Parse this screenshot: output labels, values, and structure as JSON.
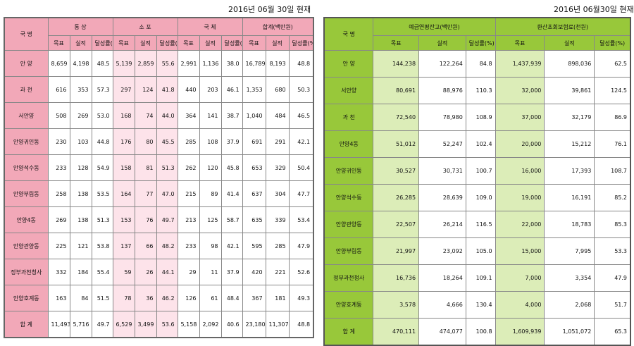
{
  "left": {
    "date": "2016년 06월 30일 현재",
    "col_name": "국  명",
    "groups": [
      "통  상",
      "소  포",
      "국  체",
      "합계(백만원)"
    ],
    "sub": [
      "목표",
      "실적",
      "달성률(%)"
    ],
    "rows": [
      {
        "name": "안  양",
        "v": [
          "8,659",
          "4,198",
          "48.5",
          "5,139",
          "2,859",
          "55.6",
          "2,991",
          "1,136",
          "38.0",
          "16,789",
          "8,193",
          "48.8"
        ]
      },
      {
        "name": "과  천",
        "v": [
          "616",
          "353",
          "57.3",
          "297",
          "124",
          "41.8",
          "440",
          "203",
          "46.1",
          "1,353",
          "680",
          "50.3"
        ]
      },
      {
        "name": "서안양",
        "v": [
          "508",
          "269",
          "53.0",
          "168",
          "74",
          "44.0",
          "364",
          "141",
          "38.7",
          "1,040",
          "484",
          "46.5"
        ]
      },
      {
        "name": "안양귀인동",
        "v": [
          "230",
          "103",
          "44.8",
          "176",
          "80",
          "45.5",
          "285",
          "108",
          "37.9",
          "691",
          "291",
          "42.1"
        ]
      },
      {
        "name": "안양석수동",
        "v": [
          "233",
          "128",
          "54.9",
          "158",
          "81",
          "51.3",
          "262",
          "120",
          "45.8",
          "653",
          "329",
          "50.4"
        ]
      },
      {
        "name": "안양부림동",
        "v": [
          "258",
          "138",
          "53.5",
          "164",
          "77",
          "47.0",
          "215",
          "89",
          "41.4",
          "637",
          "304",
          "47.7"
        ]
      },
      {
        "name": "안양4동",
        "v": [
          "269",
          "138",
          "51.3",
          "153",
          "76",
          "49.7",
          "213",
          "125",
          "58.7",
          "635",
          "339",
          "53.4"
        ]
      },
      {
        "name": "안양관양동",
        "v": [
          "225",
          "121",
          "53.8",
          "137",
          "66",
          "48.2",
          "233",
          "98",
          "42.1",
          "595",
          "285",
          "47.9"
        ]
      },
      {
        "name": "정부과천청사",
        "v": [
          "332",
          "184",
          "55.4",
          "59",
          "26",
          "44.1",
          "29",
          "11",
          "37.9",
          "420",
          "221",
          "52.6"
        ]
      },
      {
        "name": "안양호계동",
        "v": [
          "163",
          "84",
          "51.5",
          "78",
          "36",
          "46.2",
          "126",
          "61",
          "48.4",
          "367",
          "181",
          "49.3"
        ]
      },
      {
        "name": "합  계",
        "v": [
          "11,493",
          "5,716",
          "49.7",
          "6,529",
          "3,499",
          "53.6",
          "5,158",
          "2,092",
          "40.6",
          "23,180",
          "11,307",
          "48.8"
        ]
      }
    ]
  },
  "right": {
    "date": "2016년 06월30일 현재",
    "col_name": "국  명",
    "groups": [
      "예금연평잔고(백만원)",
      "환산초회보험료(천원)"
    ],
    "sub": [
      "목표",
      "실적",
      "달성률(%)"
    ],
    "rows": [
      {
        "name": "안  양",
        "v": [
          "144,238",
          "122,264",
          "84.8",
          "1,437,939",
          "898,036",
          "62.5"
        ]
      },
      {
        "name": "서안양",
        "v": [
          "80,691",
          "88,976",
          "110.3",
          "32,000",
          "39,861",
          "124.5"
        ]
      },
      {
        "name": "과  천",
        "v": [
          "72,540",
          "78,980",
          "108.9",
          "37,000",
          "32,179",
          "86.9"
        ]
      },
      {
        "name": "안양4동",
        "v": [
          "51,012",
          "52,247",
          "102.4",
          "20,000",
          "15,212",
          "76.1"
        ]
      },
      {
        "name": "안양귀인동",
        "v": [
          "30,527",
          "30,731",
          "100.7",
          "16,000",
          "17,393",
          "108.7"
        ]
      },
      {
        "name": "안양석수동",
        "v": [
          "26,285",
          "28,639",
          "109.0",
          "19,000",
          "16,191",
          "85.2"
        ]
      },
      {
        "name": "안양관양동",
        "v": [
          "22,507",
          "26,214",
          "116.5",
          "22,000",
          "18,783",
          "85.3"
        ]
      },
      {
        "name": "안양부림동",
        "v": [
          "21,997",
          "23,092",
          "105.0",
          "15,000",
          "7,995",
          "53.3"
        ]
      },
      {
        "name": "정부과천청사",
        "v": [
          "16,736",
          "18,264",
          "109.1",
          "7,000",
          "3,354",
          "47.9"
        ]
      },
      {
        "name": "안양호계동",
        "v": [
          "3,578",
          "4,666",
          "130.4",
          "4,000",
          "2,068",
          "51.7"
        ]
      },
      {
        "name": "합  계",
        "v": [
          "470,111",
          "474,077",
          "100.8",
          "1,609,939",
          "1,051,072",
          "65.3"
        ]
      }
    ]
  }
}
